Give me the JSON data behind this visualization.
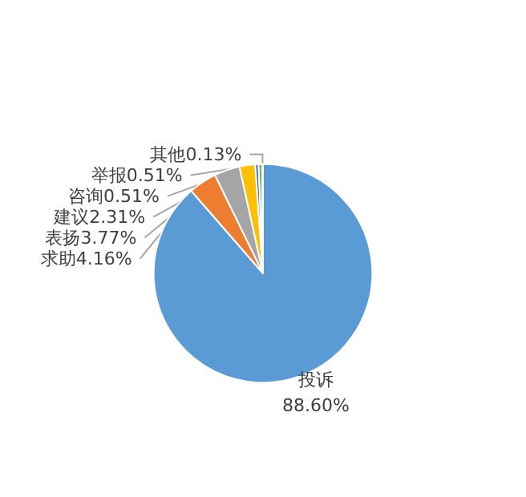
{
  "chart_data": {
    "type": "pie",
    "categories": [
      "投诉",
      "求助",
      "表扬",
      "建议",
      "咨询",
      "举报",
      "其他"
    ],
    "values": [
      88.6,
      4.16,
      3.77,
      2.31,
      0.51,
      0.51,
      0.13
    ],
    "value_labels": [
      "88.60%",
      "4.16%",
      "3.77%",
      "2.31%",
      "0.51%",
      "0.51%",
      "0.13%"
    ],
    "colors": [
      "#5b9bd5",
      "#ed7d31",
      "#a5a5a5",
      "#ffc000",
      "#4472c4",
      "#70ad47",
      "#264478"
    ]
  }
}
